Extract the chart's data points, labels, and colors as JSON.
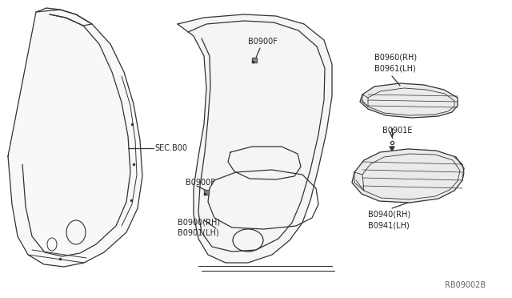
{
  "bg_color": "#ffffff",
  "line_color": "#333333",
  "text_color": "#222222",
  "fig_width": 6.4,
  "fig_height": 3.72,
  "dpi": 100,
  "labels": {
    "sec800": "SEC.B00",
    "80900f_top": "B0900F",
    "80900f_bot": "B0900F",
    "80900_rh_lh": "B0900(RH)\nB0901(LH)",
    "80960_rh_lh": "B0960(RH)\nB0961(LH)",
    "80901e": "B0901E",
    "80940_rh_lh": "B0940(RH)\nB0941(LH)",
    "ref_code": "RB09002B"
  }
}
